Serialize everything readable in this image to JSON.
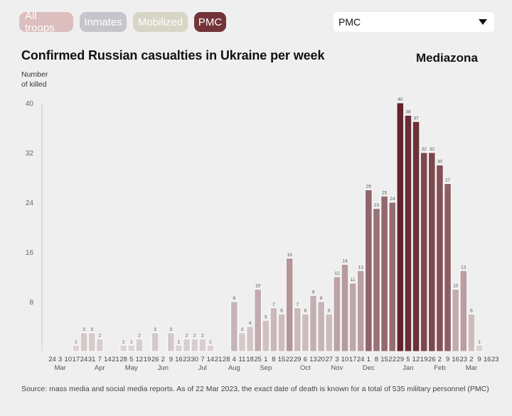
{
  "tabs": [
    {
      "label": "All troops",
      "active": false
    },
    {
      "label": "Inmates",
      "active": false
    },
    {
      "label": "Mobilized",
      "active": false
    },
    {
      "label": "PMC",
      "active": true
    }
  ],
  "select": {
    "value": "PMC"
  },
  "title": "Confirmed Russian casualties in Ukraine per week",
  "brand": "Mediazona",
  "y_axis_label": [
    "Number",
    "of killed"
  ],
  "source": "Source: mass media and social media reports. As of 22 Mar 2023, the exact date of death is known for a total of 535 military personnel (PMC)",
  "colors": {
    "pmc_accent": "#6d2a30",
    "all_troops": "#dcbcbc",
    "inmates": "#c2c4ca",
    "mobilized": "#d6d4c3"
  },
  "chart_data": {
    "type": "bar",
    "title": "Confirmed Russian casualties in Ukraine per week",
    "xlabel": "",
    "ylabel": "Number of killed",
    "ylim": [
      0,
      40
    ],
    "yticks": [
      8,
      16,
      24,
      32,
      40
    ],
    "grid": false,
    "legend": "none",
    "categories": [
      "24",
      "3",
      "10",
      "17",
      "24",
      "31",
      "7",
      "14",
      "21",
      "28",
      "5",
      "12",
      "19",
      "26",
      "2",
      "9",
      "16",
      "23",
      "30",
      "7",
      "14",
      "21",
      "28",
      "4",
      "11",
      "18",
      "25",
      "1",
      "8",
      "15",
      "22",
      "29",
      "6",
      "13",
      "20",
      "27",
      "3",
      "10",
      "17",
      "24",
      "1",
      "8",
      "15",
      "22",
      "29",
      "5",
      "12",
      "19",
      "26",
      "2",
      "9",
      "16",
      "23",
      "2",
      "9",
      "16",
      "23"
    ],
    "months": [
      {
        "label": "Mar",
        "index": 1
      },
      {
        "label": "Apr",
        "index": 6
      },
      {
        "label": "May",
        "index": 10
      },
      {
        "label": "Jun",
        "index": 14
      },
      {
        "label": "Jul",
        "index": 19
      },
      {
        "label": "Aug",
        "index": 23
      },
      {
        "label": "Sep",
        "index": 27
      },
      {
        "label": "Oct",
        "index": 32
      },
      {
        "label": "Nov",
        "index": 36
      },
      {
        "label": "Dec",
        "index": 40
      },
      {
        "label": "Jan",
        "index": 45
      },
      {
        "label": "Feb",
        "index": 49
      },
      {
        "label": "Mar",
        "index": 53
      }
    ],
    "values": [
      0,
      0,
      0,
      1,
      3,
      3,
      2,
      0,
      0,
      1,
      1,
      2,
      0,
      3,
      0,
      3,
      1,
      2,
      2,
      2,
      1,
      0,
      0,
      8,
      3,
      4,
      10,
      5,
      7,
      6,
      15,
      7,
      6,
      9,
      8,
      6,
      12,
      14,
      11,
      13,
      26,
      23,
      25,
      24,
      40,
      38,
      37,
      32,
      32,
      30,
      27,
      10,
      13,
      6,
      1,
      0,
      0
    ]
  }
}
